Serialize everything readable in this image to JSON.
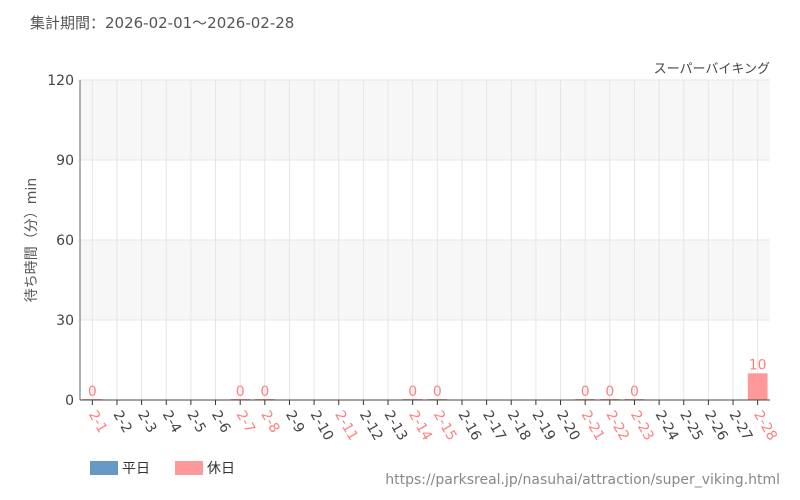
{
  "header": {
    "title": "集計期間：2026-02-01～2026-02-28"
  },
  "footer": {
    "url": "https://parksreal.jp/nasuhai/attraction/super_viking.html"
  },
  "legend": [
    {
      "label": "平日",
      "color": "#6699c4"
    },
    {
      "label": "休日",
      "color": "#ff9999"
    }
  ],
  "chart_data": {
    "type": "bar",
    "title": "スーパーバイキング",
    "ylabel": "待ち時間（分）min",
    "ylim": [
      0,
      120
    ],
    "yticks": [
      0,
      30,
      60,
      90,
      120
    ],
    "grid": true,
    "legend_placement": "bottom-left",
    "categories": [
      "2-1",
      "2-2",
      "2-3",
      "2-4",
      "2-5",
      "2-6",
      "2-7",
      "2-8",
      "2-9",
      "2-10",
      "2-11",
      "2-12",
      "2-13",
      "2-14",
      "2-15",
      "2-16",
      "2-17",
      "2-18",
      "2-19",
      "2-20",
      "2-21",
      "2-22",
      "2-23",
      "2-24",
      "2-25",
      "2-26",
      "2-27",
      "2-28"
    ],
    "holiday": [
      true,
      false,
      false,
      false,
      false,
      false,
      true,
      true,
      false,
      false,
      true,
      false,
      false,
      true,
      true,
      false,
      false,
      false,
      false,
      false,
      true,
      true,
      true,
      false,
      false,
      false,
      false,
      true
    ],
    "values": [
      0,
      null,
      null,
      null,
      null,
      null,
      0,
      0,
      null,
      null,
      null,
      null,
      null,
      0,
      0,
      null,
      null,
      null,
      null,
      null,
      0,
      0,
      0,
      null,
      null,
      null,
      null,
      10
    ],
    "colors": {
      "weekday": "#6699c4",
      "holiday": "#ff9999",
      "weekday_label": "#444444",
      "holiday_label": "#ff8080"
    }
  }
}
